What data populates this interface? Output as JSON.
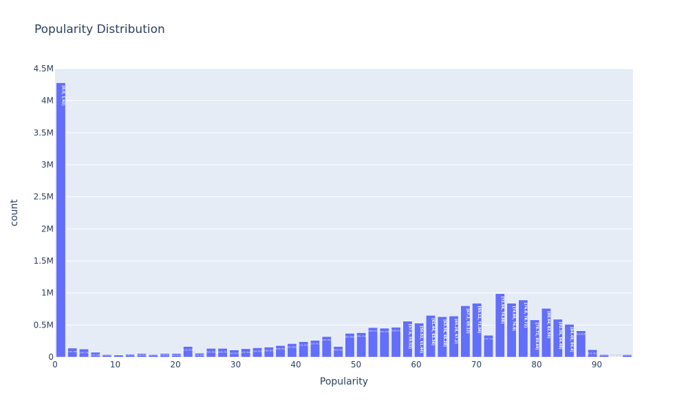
{
  "chart_data": {
    "type": "bar",
    "title": "Popularity Distribution",
    "xlabel": "Popularity",
    "ylabel": "count",
    "xlim": [
      0,
      96
    ],
    "ylim": [
      0,
      4500000
    ],
    "x_ticks": [
      {
        "value": 0,
        "label": "0"
      },
      {
        "value": 10,
        "label": "10"
      },
      {
        "value": 20,
        "label": "20"
      },
      {
        "value": 30,
        "label": "30"
      },
      {
        "value": 40,
        "label": "40"
      },
      {
        "value": 50,
        "label": "50"
      },
      {
        "value": 60,
        "label": "60"
      },
      {
        "value": 70,
        "label": "70"
      },
      {
        "value": 80,
        "label": "80"
      },
      {
        "value": 90,
        "label": "90"
      }
    ],
    "y_ticks": [
      {
        "value": 0,
        "label": "0"
      },
      {
        "value": 500000,
        "label": "0.5M"
      },
      {
        "value": 1000000,
        "label": "1M"
      },
      {
        "value": 1500000,
        "label": "1.5M"
      },
      {
        "value": 2000000,
        "label": "2M"
      },
      {
        "value": 2500000,
        "label": "2.5M"
      },
      {
        "value": 3000000,
        "label": "3M"
      },
      {
        "value": 3500000,
        "label": "3.5M"
      },
      {
        "value": 4000000,
        "label": "4M"
      },
      {
        "value": 4500000,
        "label": "4.5M"
      }
    ],
    "grid": true,
    "colors": {
      "bar": "#636efa",
      "plot_bg": "#e5ecf6",
      "grid": "#ffffff",
      "text": "#2a3f5f"
    },
    "bars": [
      {
        "start": 0,
        "end": 1.92,
        "value": 4280000,
        "label": "[0.0, 1.92)"
      },
      {
        "start": 1.92,
        "end": 3.84,
        "value": 140000,
        "label": "[1.92, 3.84)"
      },
      {
        "start": 3.84,
        "end": 5.76,
        "value": 125000,
        "label": "[3.84, 5.76)"
      },
      {
        "start": 5.76,
        "end": 7.68,
        "value": 75000,
        "label": "[5.76, 7.68)"
      },
      {
        "start": 7.68,
        "end": 9.6,
        "value": 40000,
        "label": "[7.68, 9.6)"
      },
      {
        "start": 9.6,
        "end": 11.52,
        "value": 35000,
        "label": "[9.6, 11.52)"
      },
      {
        "start": 11.52,
        "end": 13.44,
        "value": 45000,
        "label": "[11.52, 13.44)"
      },
      {
        "start": 13.44,
        "end": 15.36,
        "value": 55000,
        "label": "[13.44, 15.36)"
      },
      {
        "start": 15.36,
        "end": 17.28,
        "value": 40000,
        "label": "[15.36, 17.28)"
      },
      {
        "start": 17.28,
        "end": 19.2,
        "value": 55000,
        "label": "[17.28, 19.2)"
      },
      {
        "start": 19.2,
        "end": 21.12,
        "value": 55000,
        "label": "[19.2, 21.12)"
      },
      {
        "start": 21.12,
        "end": 23.04,
        "value": 165000,
        "label": "[21.12, 23.04)"
      },
      {
        "start": 23.04,
        "end": 24.96,
        "value": 60000,
        "label": "[23.04, 24.96)"
      },
      {
        "start": 24.96,
        "end": 26.88,
        "value": 135000,
        "label": "[24.96, 26.88)"
      },
      {
        "start": 26.88,
        "end": 28.8,
        "value": 135000,
        "label": "[26.88, 28.8)"
      },
      {
        "start": 28.8,
        "end": 30.72,
        "value": 110000,
        "label": "[28.8, 30.72)"
      },
      {
        "start": 30.72,
        "end": 32.64,
        "value": 130000,
        "label": "[30.72, 32.64)"
      },
      {
        "start": 32.64,
        "end": 34.56,
        "value": 145000,
        "label": "[32.64, 34.56)"
      },
      {
        "start": 34.56,
        "end": 36.48,
        "value": 155000,
        "label": "[34.56, 36.48)"
      },
      {
        "start": 36.48,
        "end": 38.4,
        "value": 180000,
        "label": "[36.48, 38.4)"
      },
      {
        "start": 38.4,
        "end": 40.32,
        "value": 210000,
        "label": "[38.4, 40.32)"
      },
      {
        "start": 40.32,
        "end": 42.24,
        "value": 240000,
        "label": "[40.32, 42.24)"
      },
      {
        "start": 42.24,
        "end": 44.16,
        "value": 260000,
        "label": "[42.24, 44.16)"
      },
      {
        "start": 44.16,
        "end": 46.08,
        "value": 320000,
        "label": "[44.16, 46.08)"
      },
      {
        "start": 46.08,
        "end": 48.0,
        "value": 165000,
        "label": "[46.08, 48.0)"
      },
      {
        "start": 48.0,
        "end": 49.92,
        "value": 370000,
        "label": "[48.0, 49.92)"
      },
      {
        "start": 49.92,
        "end": 51.84,
        "value": 380000,
        "label": "[49.92, 51.84)"
      },
      {
        "start": 51.84,
        "end": 53.76,
        "value": 460000,
        "label": "[51.84, 53.76)"
      },
      {
        "start": 53.76,
        "end": 55.68,
        "value": 450000,
        "label": "[53.76, 55.68)"
      },
      {
        "start": 55.68,
        "end": 57.6,
        "value": 465000,
        "label": "[55.68, 57.6)"
      },
      {
        "start": 57.6,
        "end": 59.52,
        "value": 560000,
        "label": "[57.6, 59.52)"
      },
      {
        "start": 59.52,
        "end": 61.44,
        "value": 530000,
        "label": "[59.52, 61.44)"
      },
      {
        "start": 61.44,
        "end": 63.36,
        "value": 650000,
        "label": "[61.44, 63.36)"
      },
      {
        "start": 63.36,
        "end": 65.28,
        "value": 630000,
        "label": "[63.36, 65.28)"
      },
      {
        "start": 65.28,
        "end": 67.2,
        "value": 640000,
        "label": "[65.28, 67.2)"
      },
      {
        "start": 67.2,
        "end": 69.12,
        "value": 800000,
        "label": "[67.2, 69.12)"
      },
      {
        "start": 69.12,
        "end": 71.04,
        "value": 840000,
        "label": "[69.12, 71.04)"
      },
      {
        "start": 71.04,
        "end": 72.96,
        "value": 340000,
        "label": "[71.04, 72.96)"
      },
      {
        "start": 72.96,
        "end": 74.88,
        "value": 990000,
        "label": "[72.96, 74.88)"
      },
      {
        "start": 74.88,
        "end": 76.8,
        "value": 840000,
        "label": "[74.88, 76.8)"
      },
      {
        "start": 76.8,
        "end": 78.72,
        "value": 890000,
        "label": "[76.8, 78.72)"
      },
      {
        "start": 78.72,
        "end": 80.64,
        "value": 580000,
        "label": "[78.72, 80.64)"
      },
      {
        "start": 80.64,
        "end": 82.56,
        "value": 760000,
        "label": "[80.64, 82.56)"
      },
      {
        "start": 82.56,
        "end": 84.48,
        "value": 590000,
        "label": "[82.56, 84.48)"
      },
      {
        "start": 84.48,
        "end": 86.4,
        "value": 510000,
        "label": "[84.48, 86.4)"
      },
      {
        "start": 86.4,
        "end": 88.32,
        "value": 410000,
        "label": "[86.4, 88.32)"
      },
      {
        "start": 88.32,
        "end": 90.24,
        "value": 115000,
        "label": "[88.32, 90.24)"
      },
      {
        "start": 90.24,
        "end": 92.16,
        "value": 40000,
        "label": "[90.24, 92.16)"
      },
      {
        "start": 92.16,
        "end": 94.08,
        "value": 0,
        "label": "[92.16, 94.08)"
      },
      {
        "start": 94.08,
        "end": 96.0,
        "value": 40000,
        "label": "[94.08, 96.0)"
      }
    ]
  }
}
